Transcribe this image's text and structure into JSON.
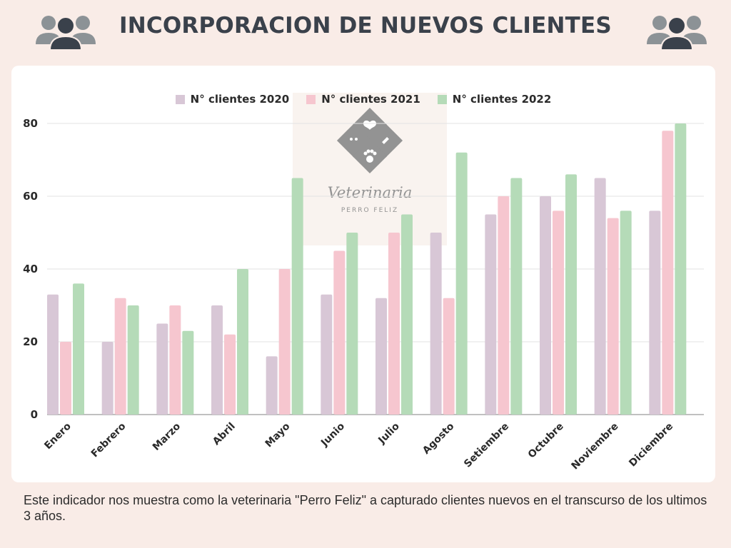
{
  "header": {
    "title": "INCORPORACION DE NUEVOS CLIENTES",
    "left_icon": "people-group-icon",
    "right_icon": "people-group-icon"
  },
  "watermark": {
    "logo_icon": "pet-paw-heart-bone-icon",
    "name": "Veterinaria",
    "subtitle": "PERRO FELIZ"
  },
  "colors": {
    "background": "#f9ece7",
    "title": "#3a414b",
    "series_2020": "#d8c7d6",
    "series_2021": "#f6c6cf",
    "series_2022": "#b5dbb8"
  },
  "chart_data": {
    "type": "bar",
    "title": "",
    "xlabel": "",
    "ylabel": "",
    "ylim": [
      0,
      80
    ],
    "yticks": [
      0,
      20,
      40,
      60,
      80
    ],
    "grid": true,
    "legend": "top-center",
    "categories": [
      "Enero",
      "Febrero",
      "Marzo",
      "Abril",
      "Mayo",
      "Junio",
      "Julio",
      "Agosto",
      "Setiembre",
      "Octubre",
      "Noviembre",
      "Diciembre"
    ],
    "series": [
      {
        "name": "N° clientes 2020",
        "color": "#d8c7d6",
        "values": [
          33,
          20,
          25,
          30,
          16,
          33,
          32,
          50,
          55,
          60,
          65,
          56
        ]
      },
      {
        "name": "N° clientes 2021",
        "color": "#f6c6cf",
        "values": [
          20,
          32,
          30,
          22,
          40,
          45,
          50,
          32,
          60,
          56,
          54,
          78
        ]
      },
      {
        "name": "N° clientes 2022",
        "color": "#b5dbb8",
        "values": [
          36,
          30,
          23,
          40,
          65,
          50,
          55,
          72,
          65,
          66,
          56,
          80
        ]
      }
    ]
  },
  "footnote": "Este indicador nos muestra como la veterinaria \"Perro Feliz\" a capturado clientes nuevos en el transcurso de los ultimos 3 años."
}
